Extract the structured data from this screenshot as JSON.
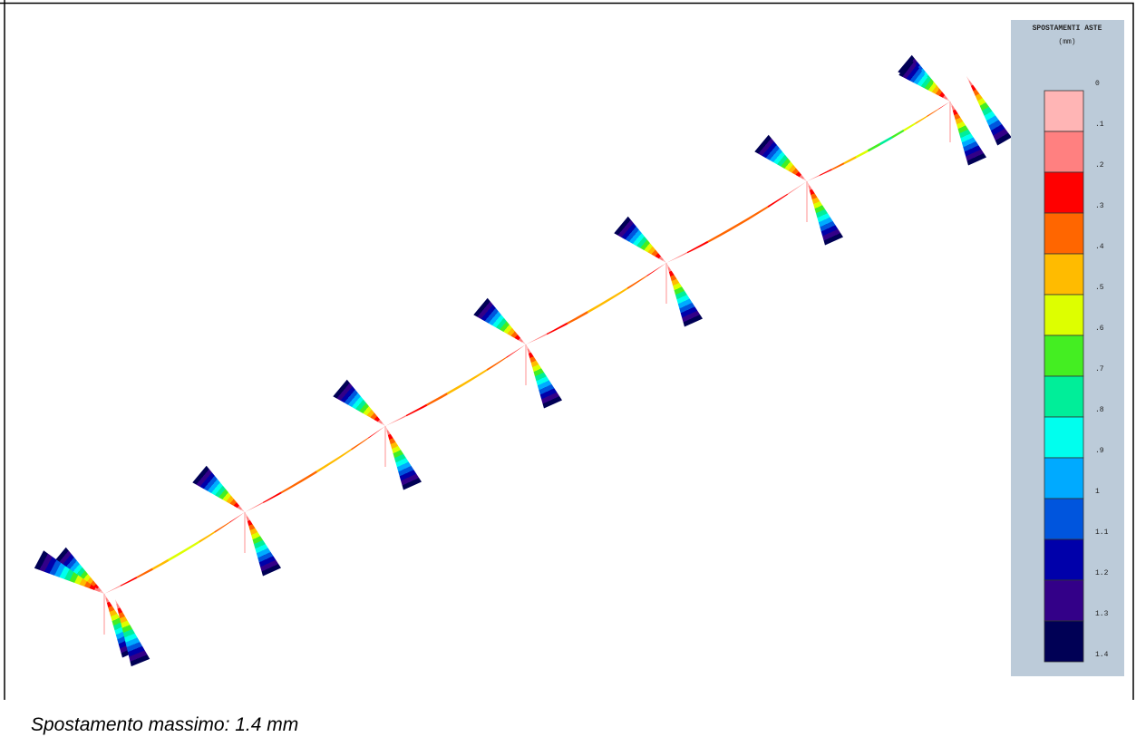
{
  "legend": {
    "title": "SPOSTAMENTI ASTE",
    "unit": "(mm)",
    "labels": [
      "0",
      ".1",
      ".2",
      ".3",
      ".4",
      ".5",
      ".6",
      ".7",
      ".8",
      ".9",
      "1",
      "1.1",
      "1.2",
      "1.3",
      "1.4"
    ],
    "colors": [
      "#ffb5b5",
      "#ff8080",
      "#ff0000",
      "#ff6600",
      "#ffbb00",
      "#ddff00",
      "#44ee22",
      "#00ee99",
      "#00ffee",
      "#00aaff",
      "#0055dd",
      "#0000aa",
      "#330088",
      "#000055"
    ]
  },
  "caption": "Spostamento massimo: 1.4 mm"
}
